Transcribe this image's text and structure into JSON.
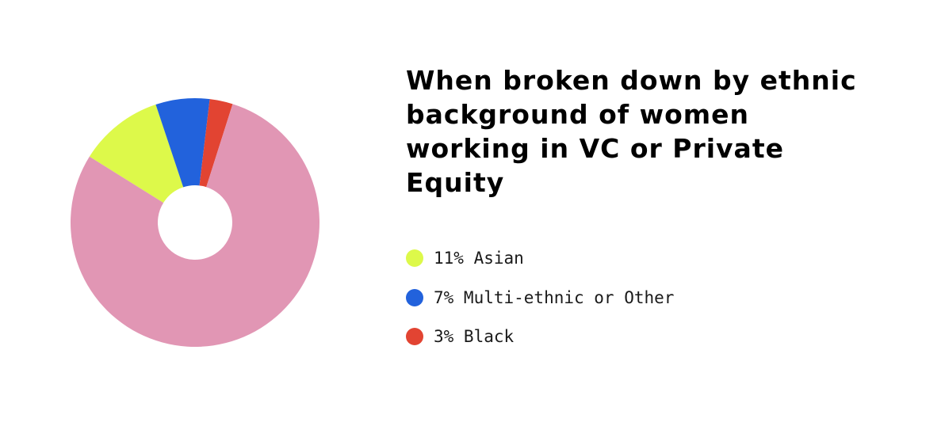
{
  "chart_data": {
    "type": "pie",
    "donut": true,
    "title": "When broken down by ethnic background of women working in VC or Private Equity",
    "legend_position": "right",
    "slices": [
      {
        "label": "Asian",
        "value": 11,
        "legend_text": "11% Asian",
        "color": "#DDF94A"
      },
      {
        "label": "Multi-ethnic or Other",
        "value": 7,
        "legend_text": "7% Multi-ethnic or Other",
        "color": "#2262DC"
      },
      {
        "label": "Black",
        "value": 3,
        "legend_text": "3% Black",
        "color": "#E24432"
      },
      {
        "label": "",
        "value": 79,
        "color": "#E196B4"
      }
    ]
  }
}
